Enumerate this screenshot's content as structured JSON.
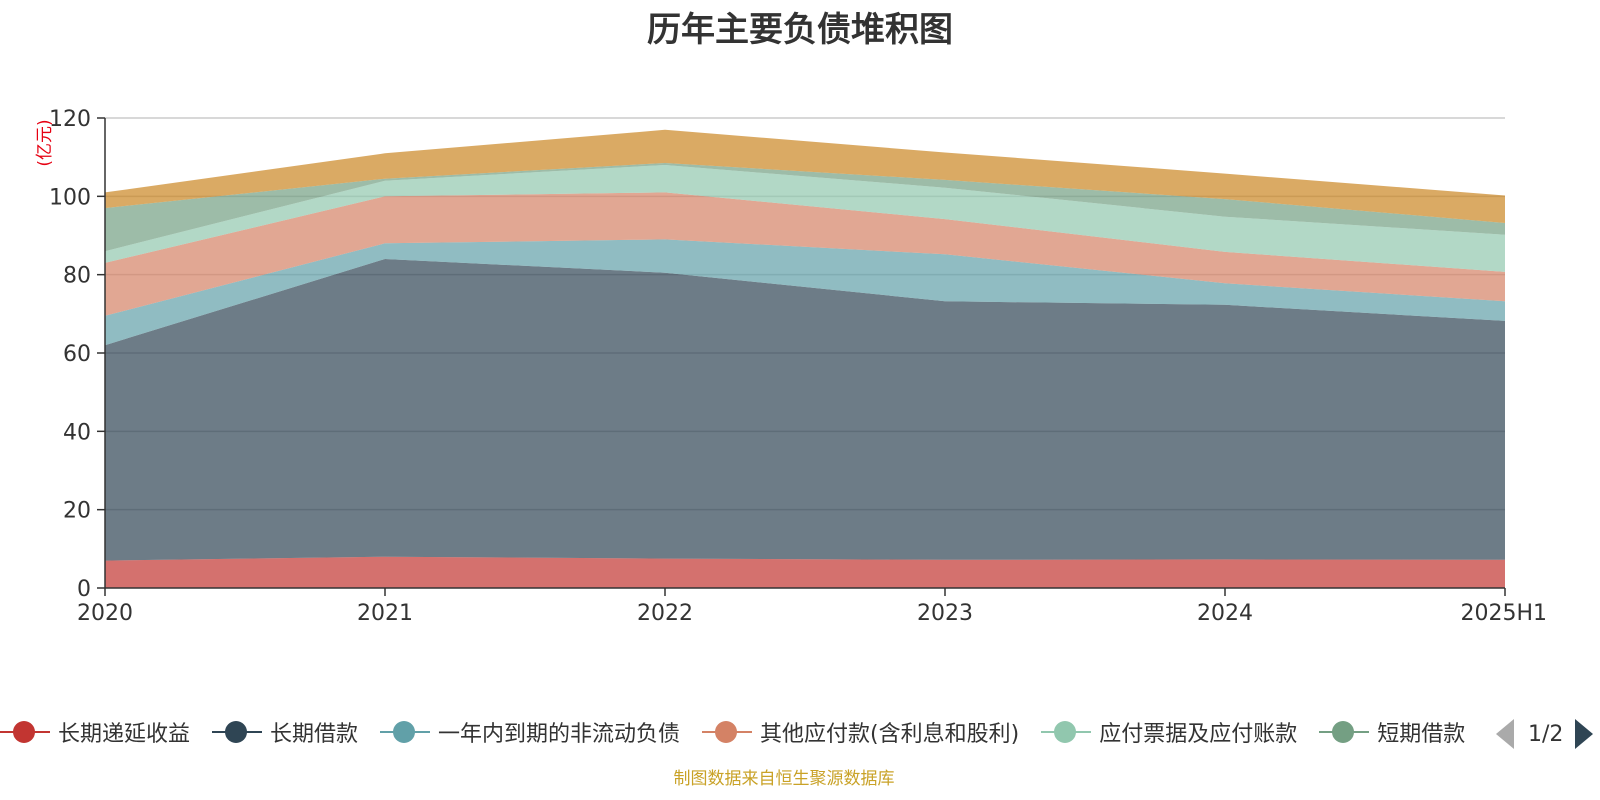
{
  "chart_data": {
    "type": "area",
    "stacked": true,
    "title": "历年主要负债堆积图",
    "ylabel": "(亿元)",
    "xlabel": "",
    "categories": [
      "2020",
      "2021",
      "2022",
      "2023",
      "2024",
      "2025H1"
    ],
    "ylim": [
      0,
      120
    ],
    "yticks": [
      0,
      20,
      40,
      60,
      80,
      100,
      120
    ],
    "grid": true,
    "legend_position": "bottom",
    "series": [
      {
        "name": "长期递延收益",
        "color": "#c23531",
        "values": [
          7.0,
          8.0,
          7.5,
          7.2,
          7.3,
          7.2
        ]
      },
      {
        "name": "长期借款",
        "color": "#2f4554",
        "values": [
          55.0,
          76.0,
          73.0,
          66.0,
          65.0,
          61.0
        ]
      },
      {
        "name": "一年内到期的非流动负债",
        "color": "#61a0a8",
        "values": [
          7.5,
          4.0,
          8.5,
          12.0,
          5.5,
          5.0
        ]
      },
      {
        "name": "其他应付款(含利息和股利)",
        "color": "#d48265",
        "values": [
          13.5,
          12.0,
          12.0,
          9.0,
          8.0,
          7.5
        ]
      },
      {
        "name": "应付票据及应付账款",
        "color": "#91c7ae",
        "values": [
          3.0,
          4.0,
          7.0,
          8.0,
          9.0,
          9.5
        ]
      },
      {
        "name": "短期借款",
        "color": "#749f83",
        "values": [
          11.0,
          0.5,
          0.5,
          2.0,
          4.5,
          3.0
        ]
      },
      {
        "name": "",
        "color": "#ca8622",
        "values": [
          4.0,
          6.5,
          8.5,
          7.0,
          6.5,
          7.0
        ]
      }
    ]
  },
  "legend": {
    "items": [
      {
        "label": "长期递延收益",
        "color": "#c23531"
      },
      {
        "label": "长期借款",
        "color": "#2f4554"
      },
      {
        "label": "一年内到期的非流动负债",
        "color": "#61a0a8"
      },
      {
        "label": "其他应付款(含利息和股利)",
        "color": "#d48265"
      },
      {
        "label": "应付票据及应付账款",
        "color": "#91c7ae"
      },
      {
        "label": "短期借款",
        "color": "#749f83"
      }
    ],
    "page_text": "1/2"
  },
  "source_note": "制图数据来自恒生聚源数据库"
}
